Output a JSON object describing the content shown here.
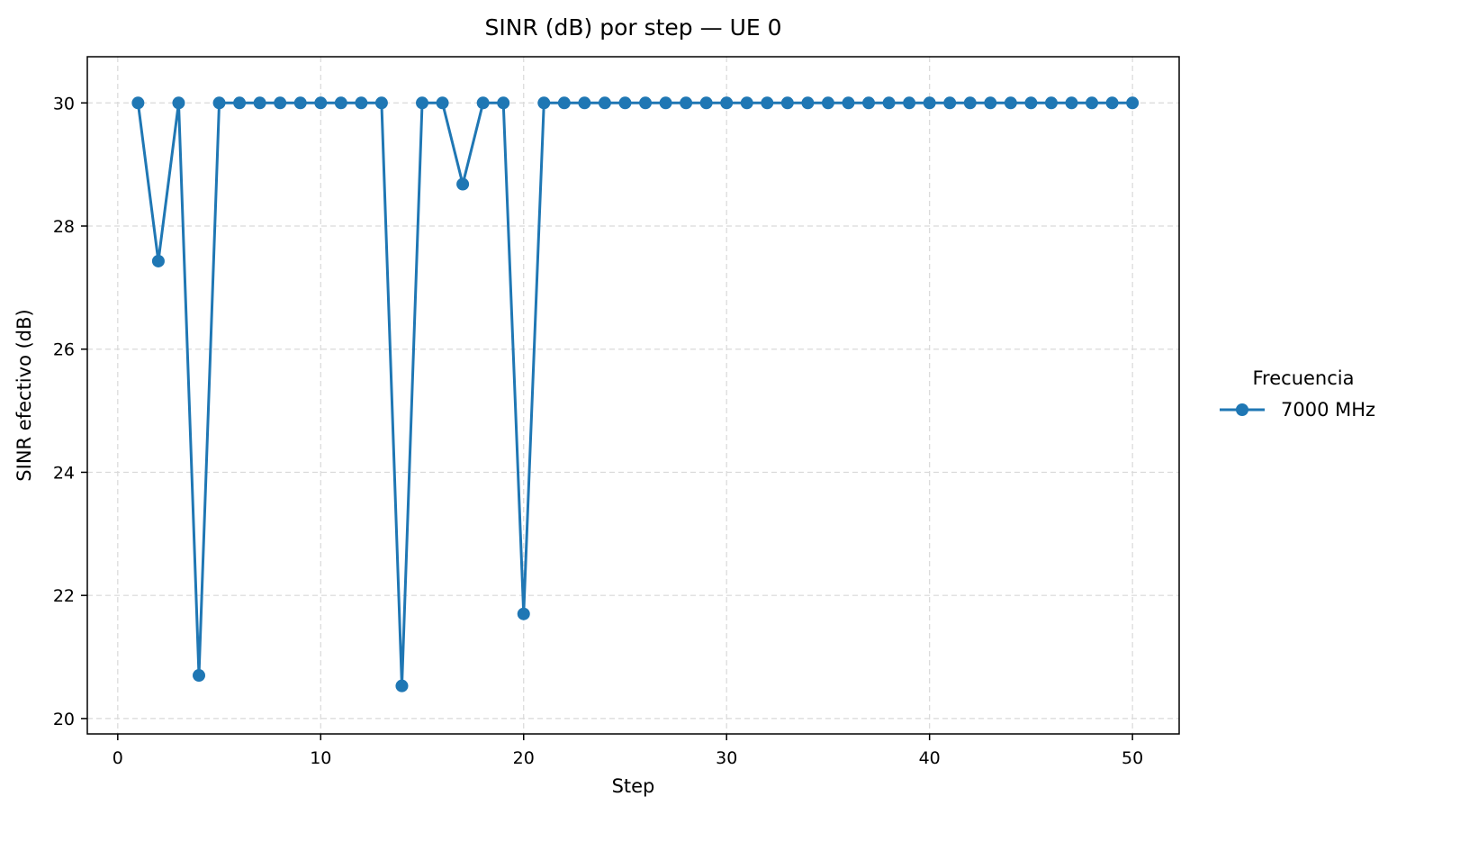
{
  "chart_data": {
    "type": "line",
    "title": "SINR (dB) por step — UE 0",
    "xlabel": "Step",
    "ylabel": "SINR efectivo (dB)",
    "xlim": [
      -1.5,
      52.3
    ],
    "ylim": [
      19.75,
      30.75
    ],
    "xticks": [
      0,
      10,
      20,
      30,
      40,
      50
    ],
    "yticks": [
      20,
      22,
      24,
      26,
      28,
      30
    ],
    "grid": true,
    "legend": {
      "title": "Frecuencia",
      "placement": "right-outside"
    },
    "series": [
      {
        "name": "7000 MHz",
        "color": "#1f77b4",
        "marker": "circle",
        "x": [
          1,
          2,
          3,
          4,
          5,
          6,
          7,
          8,
          9,
          10,
          11,
          12,
          13,
          14,
          15,
          16,
          17,
          18,
          19,
          20,
          21,
          22,
          23,
          24,
          25,
          26,
          27,
          28,
          29,
          30,
          31,
          32,
          33,
          34,
          35,
          36,
          37,
          38,
          39,
          40,
          41,
          42,
          43,
          44,
          45,
          46,
          47,
          48,
          49,
          50
        ],
        "values": [
          30,
          27.43,
          30,
          20.7,
          30,
          30,
          30,
          30,
          30,
          30,
          30,
          30,
          30,
          20.53,
          30,
          30,
          28.68,
          30,
          30,
          21.7,
          30,
          30,
          30,
          30,
          30,
          30,
          30,
          30,
          30,
          30,
          30,
          30,
          30,
          30,
          30,
          30,
          30,
          30,
          30,
          30,
          30,
          30,
          30,
          30,
          30,
          30,
          30,
          30,
          30,
          30
        ]
      }
    ]
  }
}
